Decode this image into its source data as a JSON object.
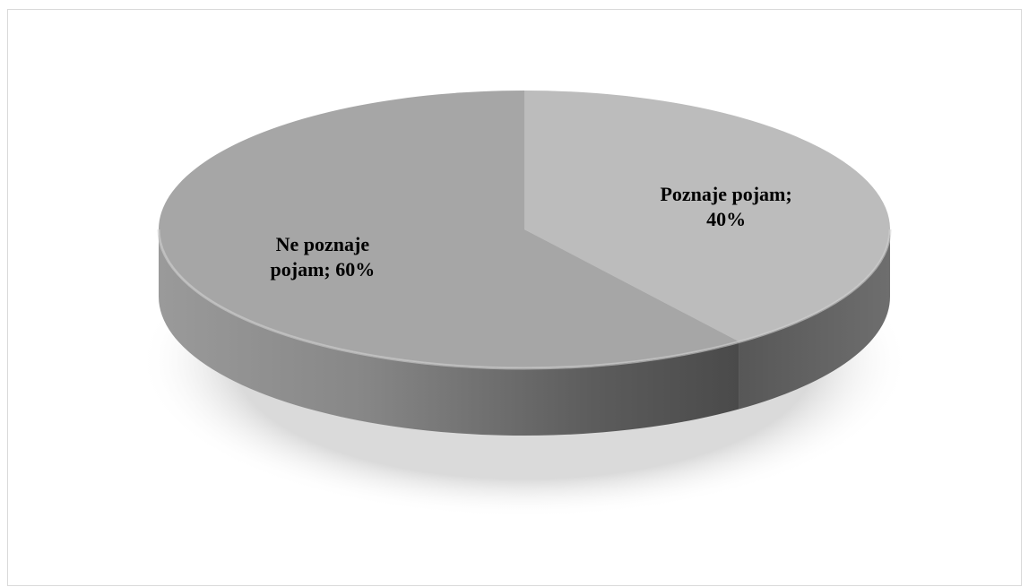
{
  "chart_data": {
    "type": "pie",
    "style": "3d",
    "slices": [
      {
        "label": "Poznaje pojam",
        "value": 40,
        "value_label": "40%",
        "label_line1": "Poznaje pojam;",
        "label_line2": "40%",
        "color": "#bcbcbc"
      },
      {
        "label": "Ne poznaje pojam",
        "value": 60,
        "value_label": "60%",
        "label_line1": "Ne poznaje",
        "label_line2": "pojam; 60%",
        "color": "#a6a6a6"
      }
    ],
    "legend": false
  }
}
